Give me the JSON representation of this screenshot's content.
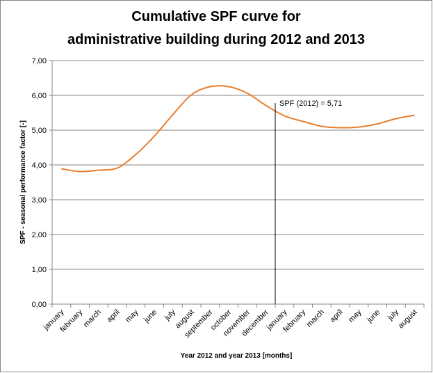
{
  "chart_data": {
    "type": "line",
    "title": [
      "Cumulative SPF curve for",
      "administrative building during 2012 and 2013"
    ],
    "x_label": "Year 2012 and year 2013 [months]",
    "y_label": "SPF - seasonal performance factor [-]",
    "categories": [
      "january",
      "february",
      "march",
      "april",
      "may",
      "june",
      "july",
      "august",
      "september",
      "october",
      "november",
      "december",
      "january",
      "february",
      "march",
      "april",
      "may",
      "june",
      "july",
      "august"
    ],
    "series": [
      {
        "color": "#e87c2c",
        "values": [
          3.89,
          3.81,
          3.85,
          3.91,
          4.3,
          4.83,
          5.45,
          6.02,
          6.25,
          6.25,
          6.06,
          5.71,
          5.41,
          5.25,
          5.11,
          5.07,
          5.09,
          5.18,
          5.33,
          5.43
        ]
      }
    ],
    "ylim": [
      0,
      7
    ],
    "yticks": [
      {
        "value": 0,
        "label": "0,00"
      },
      {
        "value": 1,
        "label": "1,00"
      },
      {
        "value": 2,
        "label": "2,00"
      },
      {
        "value": 3,
        "label": "3,00"
      },
      {
        "value": 4,
        "label": "4,00"
      },
      {
        "value": 5,
        "label": "5,00"
      },
      {
        "value": 6,
        "label": "6,00"
      },
      {
        "value": 7,
        "label": "7,00"
      }
    ],
    "grid": true,
    "annotation": "SPF (2012) = 5,71"
  }
}
